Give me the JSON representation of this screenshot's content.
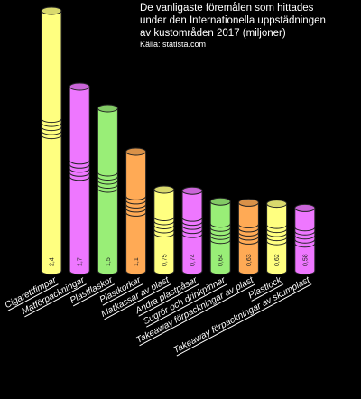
{
  "chart_data": {
    "type": "bar",
    "title_lines": [
      "De vanligaste föremålen som hittades",
      "under den Internationella uppstädningen",
      "av kustområden 2017 (miljoner)"
    ],
    "source": "Källa: statista.com",
    "categories": [
      "Cigarettfimpar",
      "Matförpackningar",
      "Plastflaskor",
      "Plastkorkar",
      "Matkassar av plast",
      "Andra plastpåsar",
      "Sugrör och drinkpinnar",
      "Takeaway förpackningar av plast",
      "Plastlock",
      "Takeaway förpackningar av skumplast"
    ],
    "values": [
      2.4,
      1.7,
      1.5,
      1.1,
      0.75,
      0.74,
      0.64,
      0.63,
      0.62,
      0.58
    ],
    "value_labels": [
      "2,4",
      "1,7",
      "1,5",
      "1,1",
      "0,75",
      "0,74",
      "0,64",
      "0,63",
      "0,62",
      "0,58"
    ],
    "colors": [
      "#ffff80",
      "#ee77ff",
      "#99ee77",
      "#ffaa55",
      "#ffff80",
      "#ee77ff",
      "#99ee77",
      "#ffaa55",
      "#ffff80",
      "#ee77ff"
    ],
    "xlabel": "",
    "ylabel": "",
    "ylim": [
      0,
      2.4
    ],
    "grid": false,
    "legend": "none"
  }
}
